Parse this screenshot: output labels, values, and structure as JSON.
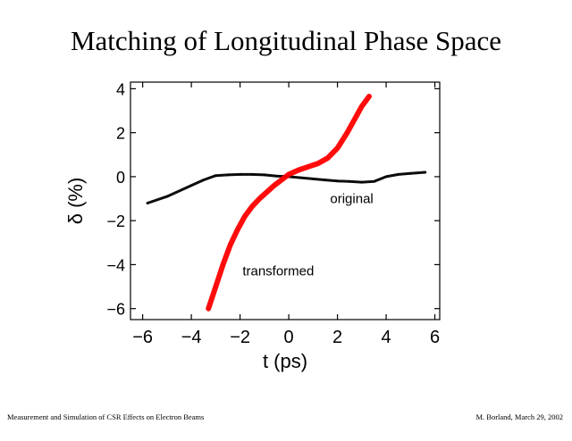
{
  "slide": {
    "title": "Matching of Longitudinal Phase Space",
    "footer_left": "Measurement and Simulation of CSR Effects on Electron Beams",
    "footer_right": "M. Borland, March 29, 2002"
  },
  "chart_data": {
    "type": "scatter",
    "title": "",
    "xlabel": "t (ps)",
    "ylabel": "δ (%)",
    "xlim": [
      -6.5,
      6.2
    ],
    "ylim": [
      -6.5,
      4.3
    ],
    "xticks": [
      -6,
      -4,
      -2,
      0,
      2,
      4,
      6
    ],
    "yticks": [
      -6,
      -4,
      -2,
      0,
      2,
      4
    ],
    "grid": false,
    "legend": "none",
    "series": [
      {
        "name": "original",
        "color": "#000000",
        "x": [
          -5.8,
          -5.0,
          -4.0,
          -3.5,
          -3.0,
          -2.5,
          -2.0,
          -1.5,
          -1.0,
          -0.5,
          0.0,
          0.5,
          1.0,
          1.5,
          2.0,
          2.5,
          3.0,
          3.5,
          4.0,
          4.5,
          5.0,
          5.6
        ],
        "y": [
          -1.2,
          -0.9,
          -0.4,
          -0.15,
          0.05,
          0.08,
          0.1,
          0.1,
          0.08,
          0.03,
          0.0,
          -0.05,
          -0.1,
          -0.15,
          -0.2,
          -0.22,
          -0.25,
          -0.22,
          0.0,
          0.1,
          0.15,
          0.2
        ]
      },
      {
        "name": "transformed",
        "color": "#ff0000",
        "x": [
          -3.3,
          -3.0,
          -2.7,
          -2.4,
          -2.1,
          -1.8,
          -1.5,
          -1.2,
          -0.9,
          -0.6,
          -0.3,
          0.0,
          0.4,
          0.8,
          1.2,
          1.6,
          2.0,
          2.4,
          2.7,
          3.0,
          3.3
        ],
        "y": [
          -6.0,
          -5.0,
          -4.0,
          -3.1,
          -2.4,
          -1.8,
          -1.35,
          -1.0,
          -0.7,
          -0.4,
          -0.15,
          0.1,
          0.3,
          0.45,
          0.6,
          0.85,
          1.3,
          2.0,
          2.6,
          3.2,
          3.65
        ]
      }
    ],
    "annotations": [
      {
        "text": "original",
        "x": 1.7,
        "y": -1.2
      },
      {
        "text": "transformed",
        "x": -1.9,
        "y": -4.5
      }
    ]
  }
}
